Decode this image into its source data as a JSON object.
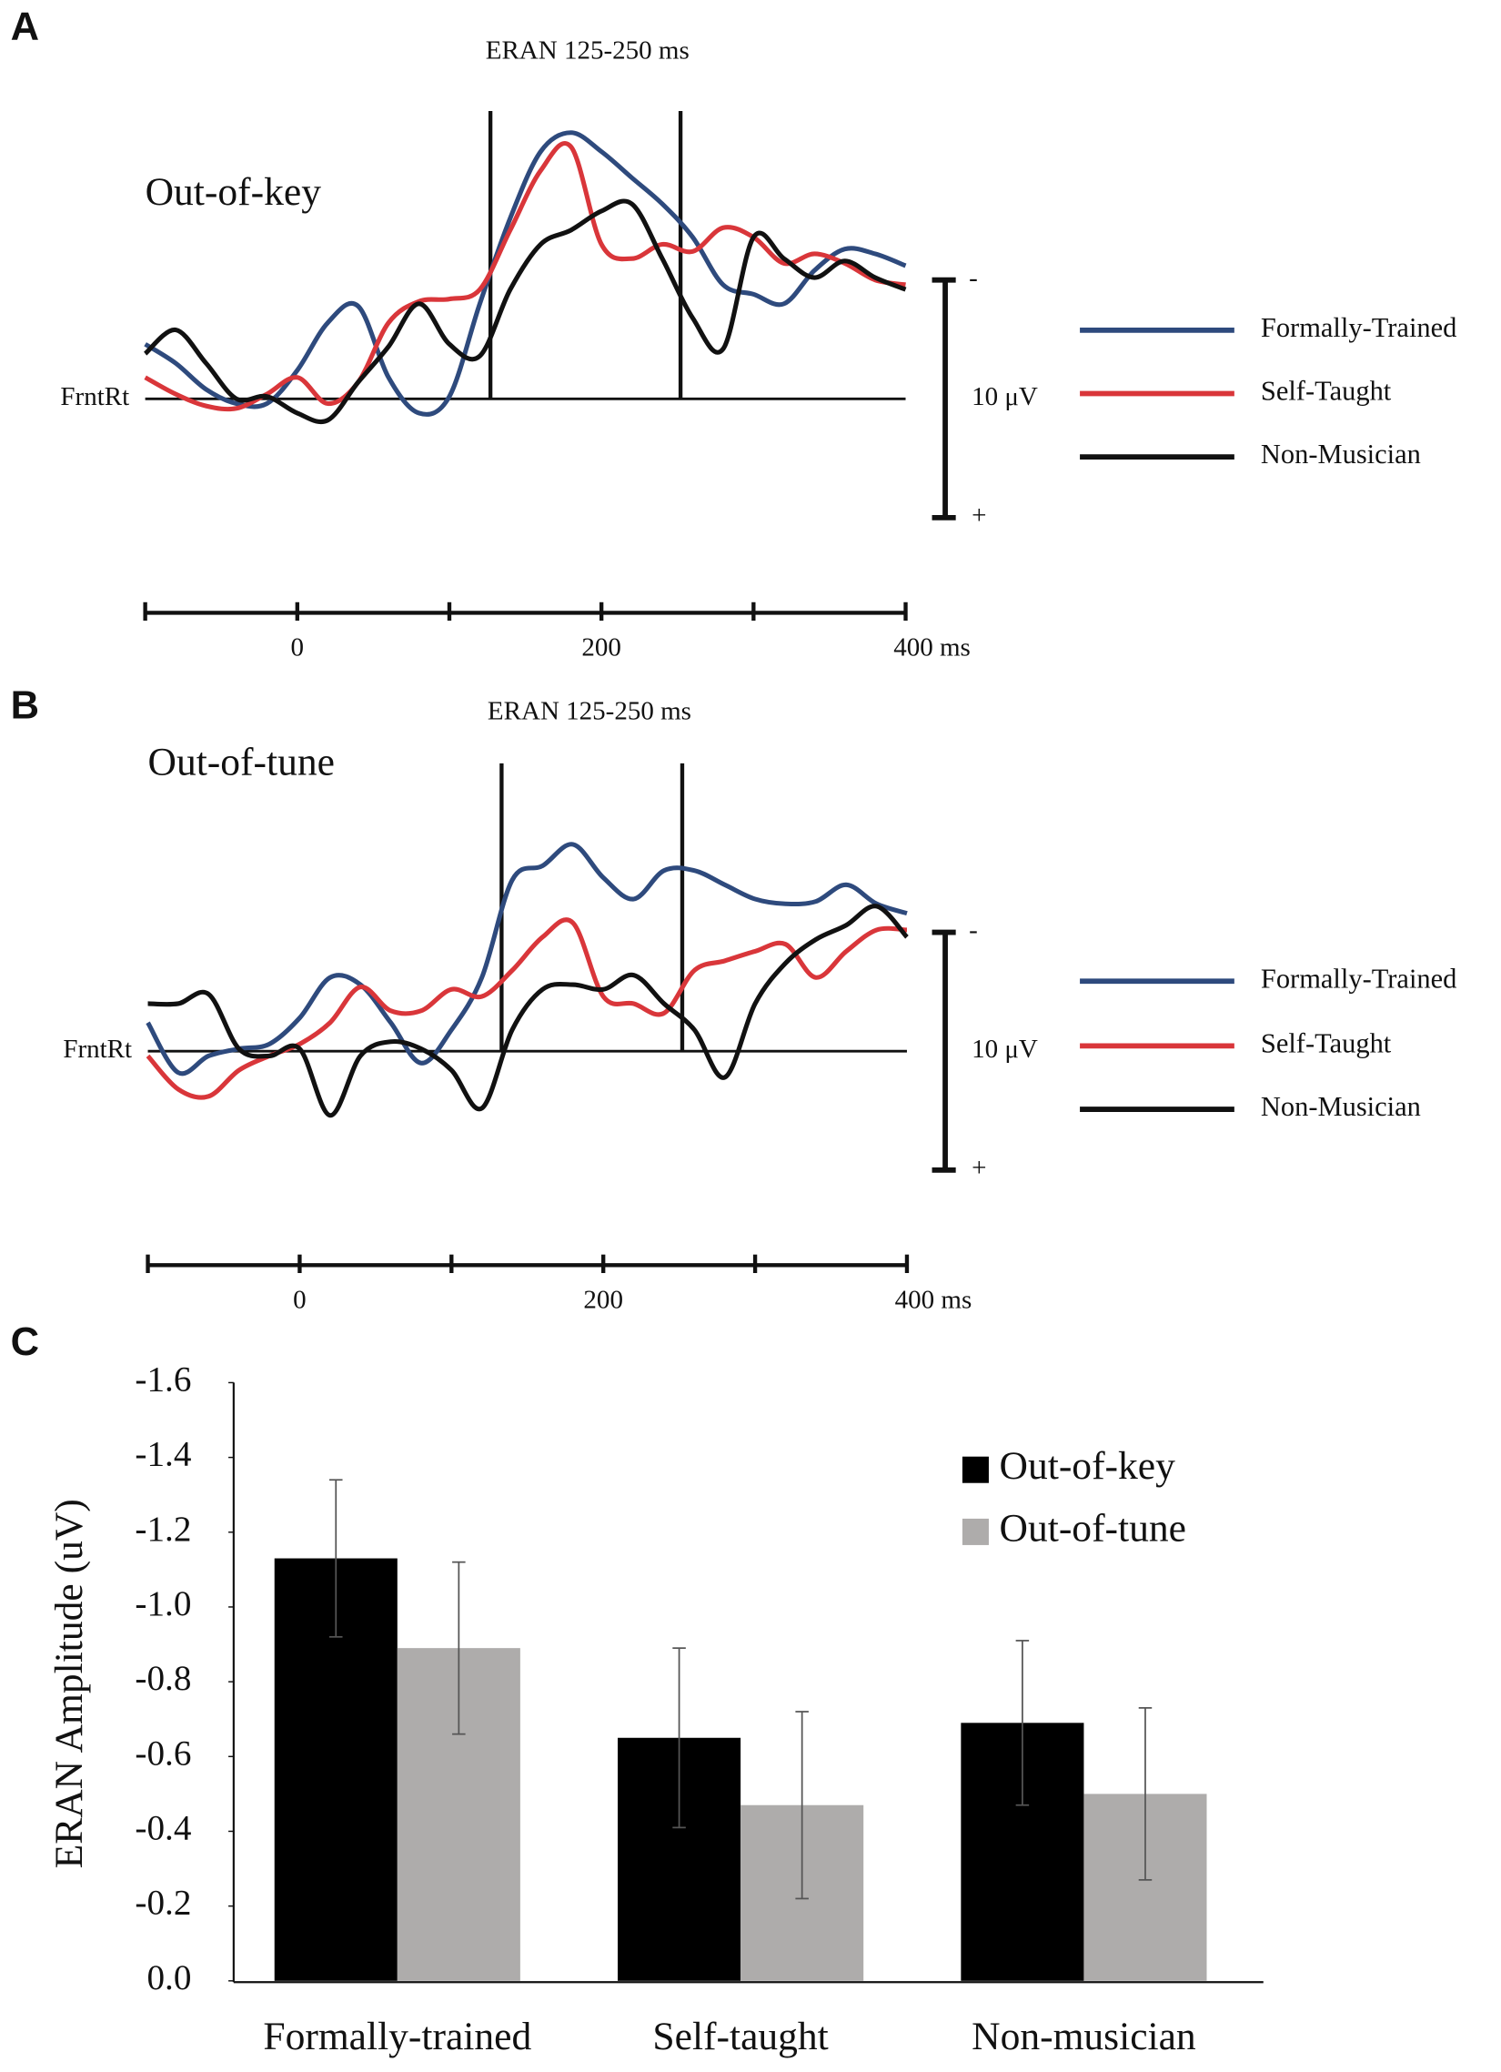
{
  "chart_data": [
    {
      "type": "line",
      "panel_label": "A",
      "title": "ERAN 125-250 ms",
      "condition": "Out-of-key",
      "channel": "FrntRt",
      "x": [
        -100,
        -80,
        -60,
        -40,
        -20,
        0,
        20,
        40,
        60,
        80,
        100,
        120,
        140,
        160,
        180,
        200,
        220,
        240,
        260,
        280,
        300,
        320,
        340,
        360,
        380,
        400
      ],
      "xlim": [
        -100,
        400
      ],
      "xticks": [
        0,
        200,
        {
          "value": 400,
          "label": "400 ms"
        }
      ],
      "xminor_ticks": [
        -100,
        100,
        300
      ],
      "ylim": [
        9,
        -12
      ],
      "window": [
        127,
        252
      ],
      "scale_bar": {
        "values": [
          -5,
          5
        ],
        "label": "10 μV",
        "negative_label": "-",
        "positive_label": "+"
      },
      "series": [
        {
          "name": "Formally-Trained",
          "color": "#2e4a7d",
          "values": [
            -2.3,
            -1.5,
            -0.4,
            0.2,
            0.2,
            -1.2,
            -3.2,
            -3.9,
            -0.9,
            0.6,
            -0.1,
            -4,
            -7.6,
            -10.4,
            -11.2,
            -10.4,
            -9.3,
            -8.2,
            -6.8,
            -4.8,
            -4.4,
            -4,
            -5.4,
            -6.3,
            -6.1,
            -5.6
          ]
        },
        {
          "name": "Self-Taught",
          "color": "#d9363a",
          "values": [
            -0.9,
            -0.2,
            0.3,
            0.4,
            -0.2,
            -0.9,
            0.2,
            -0.7,
            -3.2,
            -4.1,
            -4.2,
            -4.6,
            -7.1,
            -9.6,
            -10.6,
            -6.5,
            -5.9,
            -6.5,
            -6.2,
            -7.2,
            -6.8,
            -5.7,
            -6.1,
            -5.7,
            -5,
            -4.8
          ]
        },
        {
          "name": "Non-Musician",
          "color": "#111111",
          "values": [
            -1.9,
            -2.9,
            -1.5,
            0,
            -0.1,
            0.6,
            0.9,
            -0.7,
            -2.2,
            -4,
            -2.3,
            -1.8,
            -4.6,
            -6.5,
            -7.1,
            -7.9,
            -8.2,
            -5.9,
            -3.4,
            -2.1,
            -6.8,
            -5.9,
            -5.1,
            -5.8,
            -5.1,
            -4.6
          ]
        }
      ]
    },
    {
      "type": "line",
      "panel_label": "B",
      "title": "ERAN 125-250 ms",
      "condition": "Out-of-tune",
      "channel": "FrntRt",
      "x": [
        -100,
        -80,
        -60,
        -40,
        -20,
        0,
        20,
        40,
        60,
        80,
        100,
        120,
        140,
        160,
        180,
        200,
        220,
        240,
        260,
        280,
        300,
        320,
        340,
        360,
        380,
        400
      ],
      "xlim": [
        -100,
        400
      ],
      "xticks": [
        0,
        200,
        {
          "value": 400,
          "label": "400 ms"
        }
      ],
      "xminor_ticks": [
        -100,
        100,
        300
      ],
      "ylim": [
        9,
        -12
      ],
      "window": [
        133,
        252
      ],
      "scale_bar": {
        "values": [
          -5,
          5
        ],
        "label": "10 μV",
        "negative_label": "-",
        "positive_label": "+"
      },
      "series": [
        {
          "name": "Formally-Trained",
          "color": "#2e4a7d",
          "values": [
            -1.2,
            0.9,
            0.2,
            -0.1,
            -0.3,
            -1.4,
            -3.1,
            -2.8,
            -1.2,
            0.5,
            -0.9,
            -3.1,
            -7.2,
            -7.8,
            -8.7,
            -7.3,
            -6.4,
            -7.6,
            -7.6,
            -7,
            -6.4,
            -6.2,
            -6.3,
            -7,
            -6.2,
            -5.8
          ]
        },
        {
          "name": "Self-Taught",
          "color": "#d9363a",
          "values": [
            0.2,
            1.6,
            1.9,
            0.8,
            0.2,
            -0.3,
            -1.2,
            -2.7,
            -1.7,
            -1.7,
            -2.6,
            -2.3,
            -3.4,
            -4.8,
            -5.4,
            -2.3,
            -2,
            -1.6,
            -3.4,
            -3.8,
            -4.2,
            -4.5,
            -3.1,
            -4.2,
            -5.1,
            -5.1
          ]
        },
        {
          "name": "Non-Musician",
          "color": "#111111",
          "values": [
            -2,
            -2,
            -2.4,
            -0.1,
            0.2,
            -0.1,
            2.7,
            0.2,
            -0.4,
            -0.1,
            0.8,
            2.4,
            -0.9,
            -2.6,
            -2.8,
            -2.6,
            -3.2,
            -2,
            -0.9,
            1.1,
            -2,
            -3.7,
            -4.7,
            -5.3,
            -6.1,
            -4.8
          ]
        }
      ]
    },
    {
      "type": "bar",
      "panel_label": "C",
      "ylabel": "ERAN Amplitude (uV)",
      "categories": [
        "Formally-trained",
        "Self-taught",
        "Non-musician"
      ],
      "ylim": [
        0,
        -1.6
      ],
      "yticks": [
        {
          "value": 0,
          "label": "0.0"
        },
        -0.2,
        -0.4,
        -0.6,
        -0.8,
        {
          "value": -1,
          "label": "-1.0"
        },
        -1.2,
        -1.4,
        -1.6
      ],
      "series": [
        {
          "name": "Out-of-key",
          "color": "#000000",
          "values": [
            -1.13,
            -0.65,
            -0.69
          ],
          "errors": [
            0.21,
            0.24,
            0.22
          ]
        },
        {
          "name": "Out-of-tune",
          "color": "#aeacab",
          "values": [
            -0.89,
            -0.47,
            -0.5
          ],
          "errors": [
            0.23,
            0.25,
            0.23
          ]
        }
      ]
    }
  ]
}
